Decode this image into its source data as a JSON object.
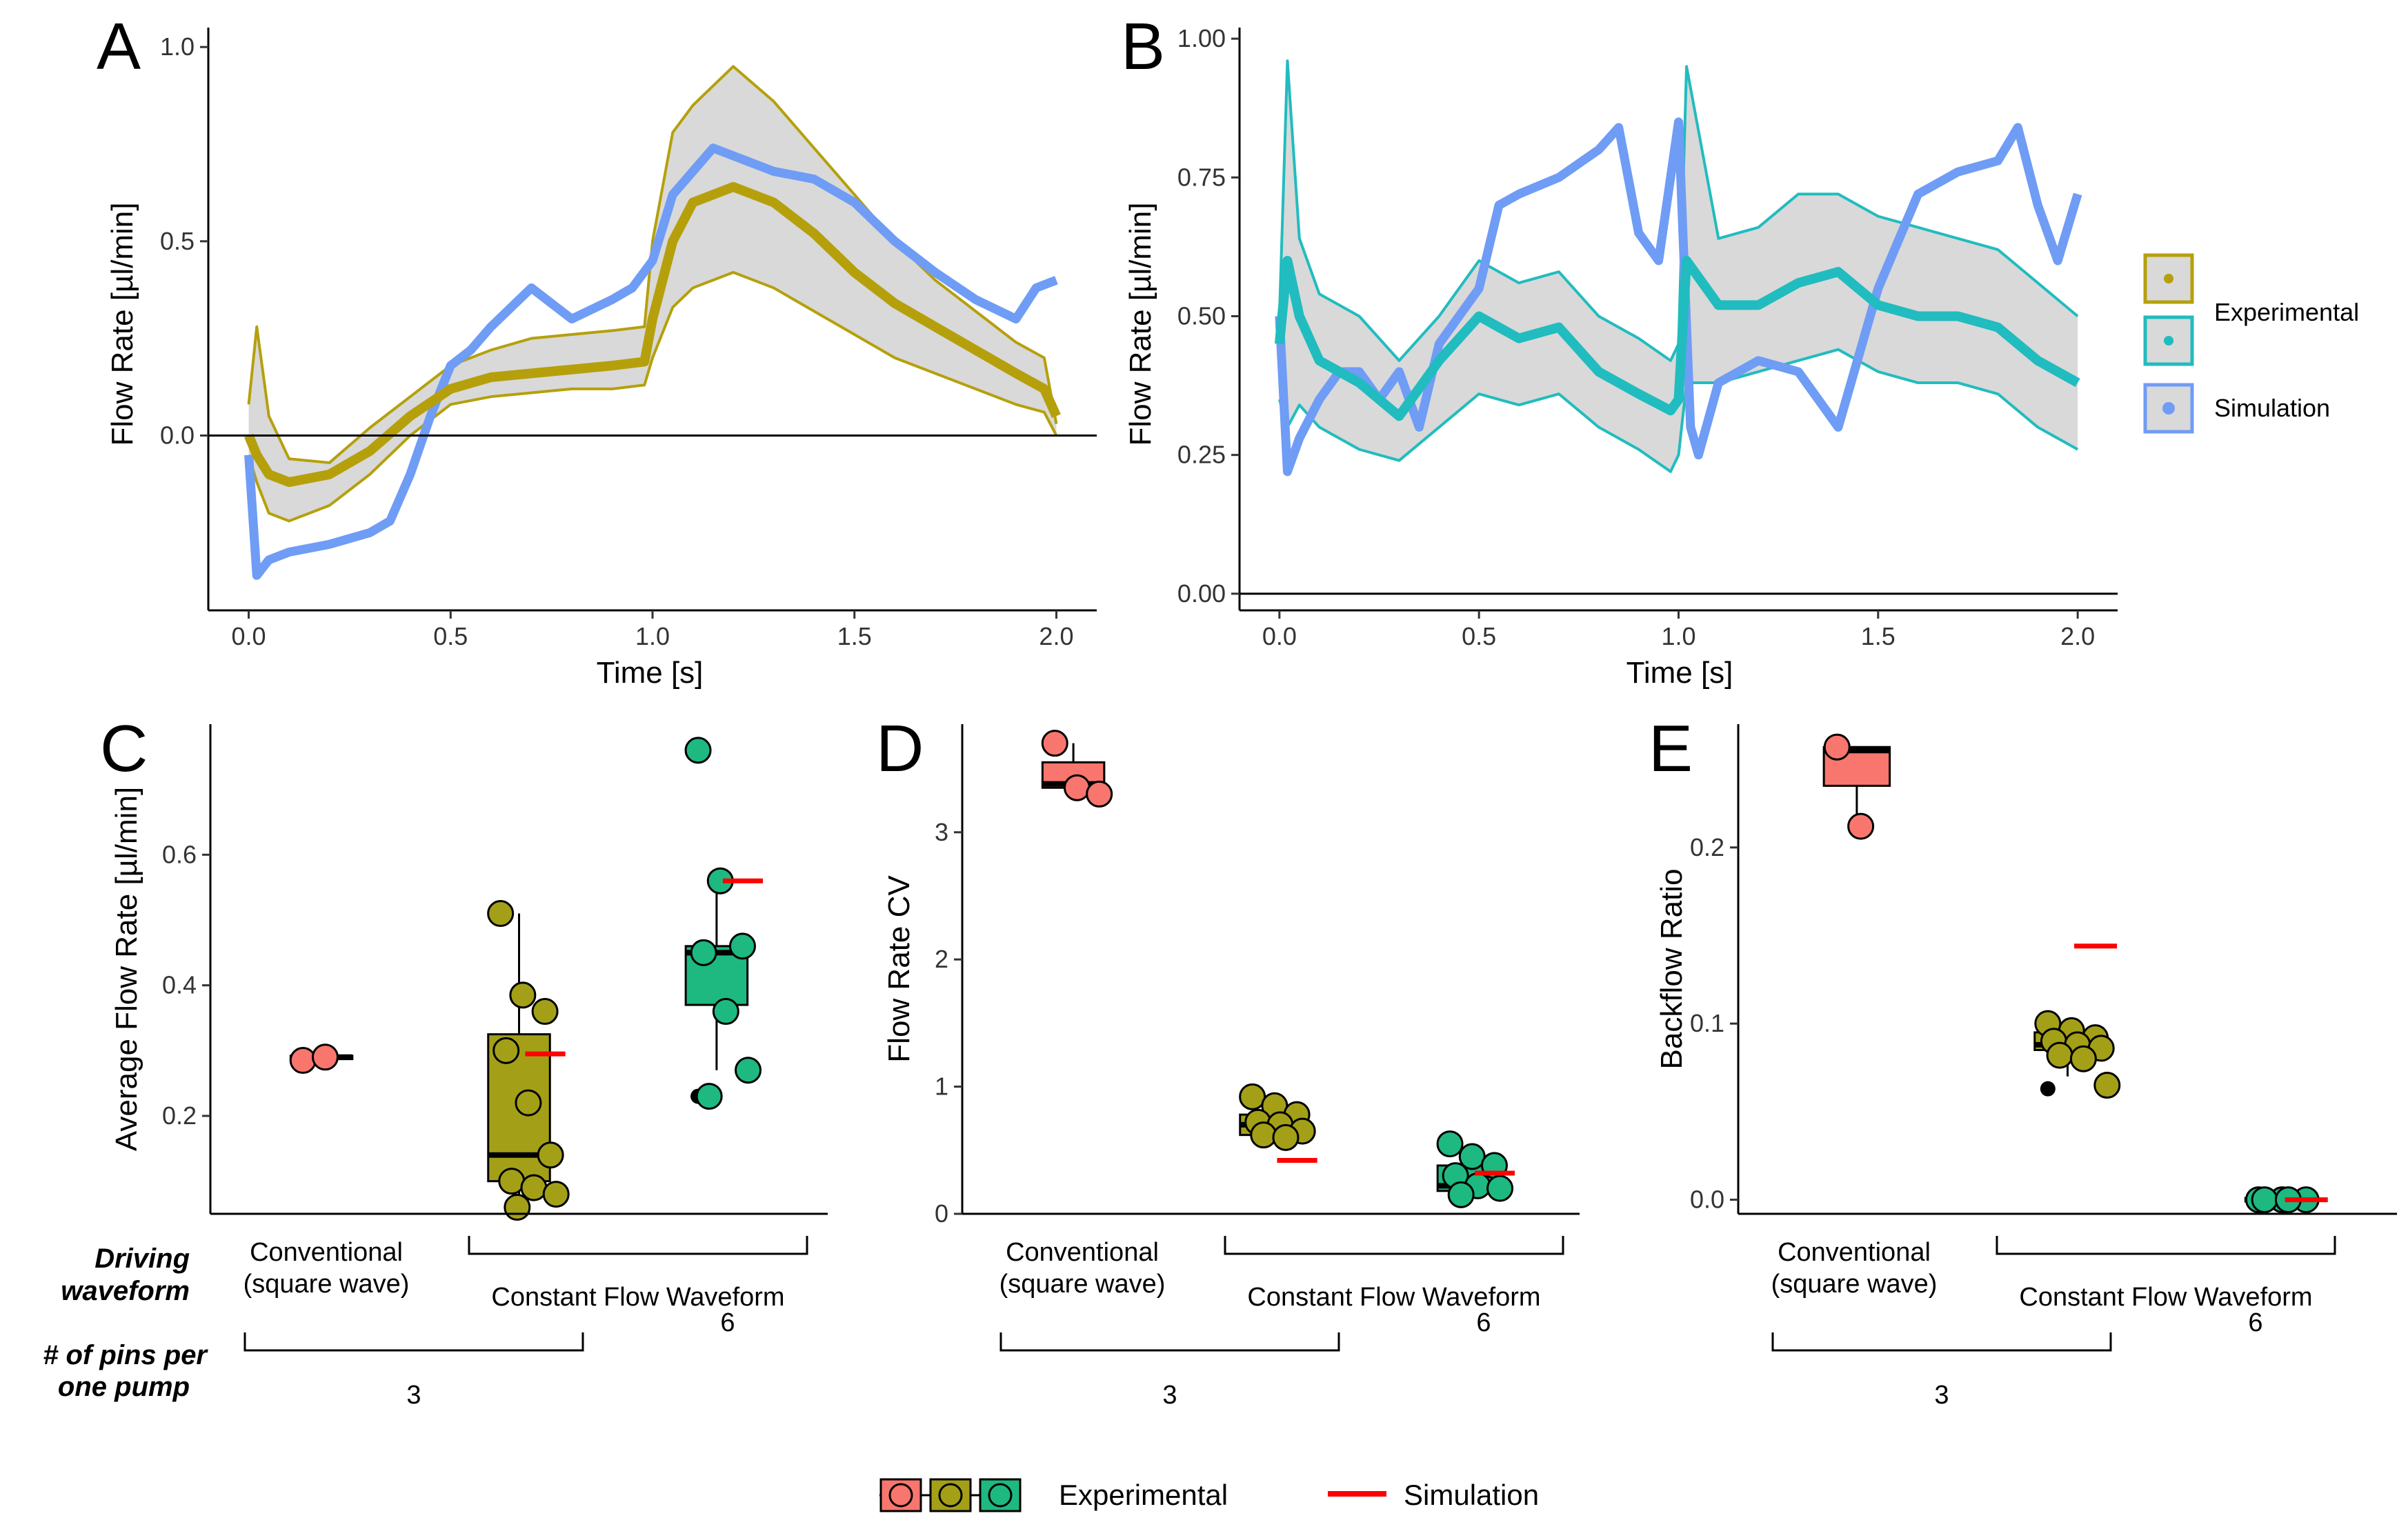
{
  "colors": {
    "panel_a": "#b5a00c",
    "panel_b": "#21bcbf",
    "sim_blue": "#6f9cf5",
    "band": "#d9d9d9",
    "conventional": "#f8766d",
    "constant3": "#a3a018",
    "constant6": "#1db981",
    "sim_red": "#ff0000"
  },
  "panels": {
    "a": {
      "letter": "A",
      "ylabel": "Flow Rate [µl/min]",
      "xlabel": "Time [s]"
    },
    "b": {
      "letter": "B",
      "ylabel": "Flow Rate [µl/min]",
      "xlabel": "Time [s]"
    },
    "c": {
      "letter": "C",
      "ylabel": "Average Flow Rate [µl/min]"
    },
    "d": {
      "letter": "D",
      "ylabel": "Flow Rate CV"
    },
    "e": {
      "letter": "E",
      "ylabel": "Backflow Ratio"
    }
  },
  "legend_top": {
    "experimental": "Experimental",
    "simulation": "Simulation"
  },
  "legend_bottom": {
    "experimental": "Experimental",
    "simulation": "Simulation"
  },
  "row_labels": {
    "driving_1": "Driving",
    "driving_2": "waveform",
    "pins_1": "# of pins per",
    "pins_2": "one pump"
  },
  "groups": {
    "conventional_1": "Conventional",
    "conventional_2": "(square wave)",
    "constant": "Constant Flow Waveform",
    "pins3": "3",
    "pins6": "6"
  },
  "chart_data": [
    {
      "panel": "A",
      "type": "line",
      "xlabel": "Time [s]",
      "ylabel": "Flow Rate [µl/min]",
      "xlim": [
        -0.1,
        2.1
      ],
      "ylim": [
        -0.45,
        1.05
      ],
      "xticks": [
        0.0,
        0.5,
        1.0,
        1.5,
        2.0
      ],
      "yticks": [
        0.0,
        0.5,
        1.0
      ],
      "xtick_labels": [
        "0.0",
        "0.5",
        "1.0",
        "1.5",
        "2.0"
      ],
      "ytick_labels": [
        "0.0",
        "0.5",
        "1.0"
      ],
      "series": [
        {
          "name": "Experimental (mean)",
          "x": [
            0,
            0.02,
            0.05,
            0.1,
            0.2,
            0.3,
            0.4,
            0.5,
            0.6,
            0.7,
            0.8,
            0.9,
            0.98,
            1.0,
            1.05,
            1.1,
            1.2,
            1.3,
            1.4,
            1.5,
            1.6,
            1.7,
            1.8,
            1.9,
            1.97,
            2.0
          ],
          "y": [
            0.0,
            -0.05,
            -0.1,
            -0.12,
            -0.1,
            -0.04,
            0.05,
            0.12,
            0.15,
            0.16,
            0.17,
            0.18,
            0.19,
            0.3,
            0.5,
            0.6,
            0.64,
            0.6,
            0.52,
            0.42,
            0.34,
            0.28,
            0.22,
            0.16,
            0.12,
            0.05
          ]
        },
        {
          "name": "Experimental (upper)",
          "x": [
            0,
            0.02,
            0.05,
            0.1,
            0.2,
            0.3,
            0.4,
            0.5,
            0.6,
            0.7,
            0.8,
            0.9,
            0.98,
            1.0,
            1.05,
            1.1,
            1.2,
            1.3,
            1.4,
            1.5,
            1.6,
            1.7,
            1.8,
            1.9,
            1.97,
            2.0
          ],
          "y": [
            0.08,
            0.28,
            0.05,
            -0.06,
            -0.07,
            0.02,
            0.1,
            0.18,
            0.22,
            0.25,
            0.26,
            0.27,
            0.28,
            0.5,
            0.78,
            0.85,
            0.95,
            0.86,
            0.74,
            0.62,
            0.5,
            0.4,
            0.32,
            0.24,
            0.2,
            0.03
          ]
        },
        {
          "name": "Experimental (lower)",
          "x": [
            0,
            0.02,
            0.05,
            0.1,
            0.2,
            0.3,
            0.4,
            0.5,
            0.6,
            0.7,
            0.8,
            0.9,
            0.98,
            1.0,
            1.05,
            1.1,
            1.2,
            1.3,
            1.4,
            1.5,
            1.6,
            1.7,
            1.8,
            1.9,
            1.97,
            2.0
          ],
          "y": [
            -0.05,
            -0.12,
            -0.2,
            -0.22,
            -0.18,
            -0.1,
            0.0,
            0.08,
            0.1,
            0.11,
            0.12,
            0.12,
            0.13,
            0.2,
            0.33,
            0.38,
            0.42,
            0.38,
            0.32,
            0.26,
            0.2,
            0.16,
            0.12,
            0.08,
            0.06,
            0.0
          ]
        },
        {
          "name": "Simulation",
          "x": [
            0,
            0.02,
            0.05,
            0.1,
            0.2,
            0.3,
            0.35,
            0.4,
            0.45,
            0.5,
            0.55,
            0.6,
            0.7,
            0.8,
            0.9,
            0.95,
            1.0,
            1.05,
            1.1,
            1.15,
            1.2,
            1.3,
            1.4,
            1.5,
            1.6,
            1.7,
            1.8,
            1.9,
            1.95,
            2.0
          ],
          "y": [
            -0.05,
            -0.36,
            -0.32,
            -0.3,
            -0.28,
            -0.25,
            -0.22,
            -0.1,
            0.05,
            0.18,
            0.22,
            0.28,
            0.38,
            0.3,
            0.35,
            0.38,
            0.45,
            0.62,
            0.68,
            0.74,
            0.72,
            0.68,
            0.66,
            0.6,
            0.5,
            0.42,
            0.35,
            0.3,
            0.38,
            0.4
          ]
        }
      ]
    },
    {
      "panel": "B",
      "type": "line",
      "xlabel": "Time [s]",
      "ylabel": "Flow Rate [µl/min]",
      "xlim": [
        -0.1,
        2.1
      ],
      "ylim": [
        -0.03,
        1.02
      ],
      "xticks": [
        0.0,
        0.5,
        1.0,
        1.5,
        2.0
      ],
      "yticks": [
        0.0,
        0.25,
        0.5,
        0.75,
        1.0
      ],
      "xtick_labels": [
        "0.0",
        "0.5",
        "1.0",
        "1.5",
        "2.0"
      ],
      "ytick_labels": [
        "0.00",
        "0.25",
        "0.50",
        "0.75",
        "1.00"
      ],
      "series": [
        {
          "name": "Experimental (mean)",
          "x": [
            0,
            0.02,
            0.05,
            0.1,
            0.2,
            0.3,
            0.4,
            0.5,
            0.6,
            0.7,
            0.8,
            0.9,
            0.98,
            1.0,
            1.02,
            1.1,
            1.2,
            1.3,
            1.4,
            1.5,
            1.6,
            1.7,
            1.8,
            1.9,
            2.0
          ],
          "y": [
            0.45,
            0.6,
            0.5,
            0.42,
            0.38,
            0.32,
            0.42,
            0.5,
            0.46,
            0.48,
            0.4,
            0.36,
            0.33,
            0.35,
            0.6,
            0.52,
            0.52,
            0.56,
            0.58,
            0.52,
            0.5,
            0.5,
            0.48,
            0.42,
            0.38
          ]
        },
        {
          "name": "Experimental (upper)",
          "x": [
            0,
            0.02,
            0.05,
            0.1,
            0.2,
            0.3,
            0.4,
            0.5,
            0.6,
            0.7,
            0.8,
            0.9,
            0.98,
            1.0,
            1.02,
            1.1,
            1.2,
            1.3,
            1.4,
            1.5,
            1.6,
            1.7,
            1.8,
            1.9,
            2.0
          ],
          "y": [
            0.5,
            0.96,
            0.64,
            0.54,
            0.5,
            0.42,
            0.5,
            0.6,
            0.56,
            0.58,
            0.5,
            0.46,
            0.42,
            0.45,
            0.95,
            0.64,
            0.66,
            0.72,
            0.72,
            0.68,
            0.66,
            0.64,
            0.62,
            0.56,
            0.5
          ]
        },
        {
          "name": "Experimental (lower)",
          "x": [
            0,
            0.02,
            0.05,
            0.1,
            0.2,
            0.3,
            0.4,
            0.5,
            0.6,
            0.7,
            0.8,
            0.9,
            0.98,
            1.0,
            1.02,
            1.1,
            1.2,
            1.3,
            1.4,
            1.5,
            1.6,
            1.7,
            1.8,
            1.9,
            2.0
          ],
          "y": [
            0.35,
            0.3,
            0.34,
            0.3,
            0.26,
            0.24,
            0.3,
            0.36,
            0.34,
            0.36,
            0.3,
            0.26,
            0.22,
            0.25,
            0.38,
            0.38,
            0.4,
            0.42,
            0.44,
            0.4,
            0.38,
            0.38,
            0.36,
            0.3,
            0.26
          ]
        },
        {
          "name": "Simulation",
          "x": [
            0,
            0.02,
            0.05,
            0.1,
            0.15,
            0.2,
            0.25,
            0.3,
            0.35,
            0.4,
            0.5,
            0.55,
            0.6,
            0.7,
            0.8,
            0.85,
            0.9,
            0.95,
            1.0,
            1.03,
            1.05,
            1.1,
            1.2,
            1.3,
            1.4,
            1.5,
            1.6,
            1.7,
            1.8,
            1.85,
            1.9,
            1.95,
            2.0
          ],
          "y": [
            0.5,
            0.22,
            0.28,
            0.35,
            0.4,
            0.4,
            0.35,
            0.4,
            0.3,
            0.45,
            0.55,
            0.7,
            0.72,
            0.75,
            0.8,
            0.84,
            0.65,
            0.6,
            0.85,
            0.3,
            0.25,
            0.38,
            0.42,
            0.4,
            0.3,
            0.55,
            0.72,
            0.76,
            0.78,
            0.84,
            0.7,
            0.6,
            0.72
          ]
        }
      ]
    },
    {
      "panel": "C",
      "type": "box",
      "ylabel": "Average Flow Rate [µl/min]",
      "ylim": [
        0.05,
        0.8
      ],
      "yticks": [
        0.2,
        0.4,
        0.6
      ],
      "ytick_labels": [
        "0.2",
        "0.4",
        "0.6"
      ],
      "categories": [
        "Conventional (square wave) / 3 pins",
        "Constant Flow Waveform / 3 pins",
        "Constant Flow Waveform / 6 pins"
      ],
      "boxes": [
        {
          "q1": 0.287,
          "median": 0.29,
          "q3": 0.292,
          "whisker_low": 0.285,
          "whisker_high": 0.295,
          "outliers": []
        },
        {
          "q1": 0.1,
          "median": 0.14,
          "q3": 0.325,
          "whisker_low": 0.07,
          "whisker_high": 0.51,
          "outliers": []
        },
        {
          "q1": 0.37,
          "median": 0.45,
          "q3": 0.46,
          "whisker_low": 0.27,
          "whisker_high": 0.56,
          "outliers": [
            0.76,
            0.23
          ]
        }
      ],
      "points": [
        [
          0.285,
          0.29
        ],
        [
          0.51,
          0.385,
          0.36,
          0.3,
          0.22,
          0.14,
          0.1,
          0.09,
          0.08,
          0.06
        ],
        [
          0.76,
          0.56,
          0.46,
          0.45,
          0.36,
          0.27,
          0.23
        ]
      ],
      "simulation": [
        null,
        0.295,
        0.56
      ]
    },
    {
      "panel": "D",
      "type": "box",
      "ylabel": "Flow Rate CV",
      "ylim": [
        0,
        3.85
      ],
      "yticks": [
        0,
        1,
        2,
        3
      ],
      "ytick_labels": [
        "0",
        "1",
        "2",
        "3"
      ],
      "categories": [
        "Conventional (square wave) / 3 pins",
        "Constant Flow Waveform / 3 pins",
        "Constant Flow Waveform / 6 pins"
      ],
      "boxes": [
        {
          "q1": 3.35,
          "median": 3.38,
          "q3": 3.55,
          "whisker_low": 3.3,
          "whisker_high": 3.7,
          "outliers": []
        },
        {
          "q1": 0.62,
          "median": 0.7,
          "q3": 0.78,
          "whisker_low": 0.55,
          "whisker_high": 0.92,
          "outliers": []
        },
        {
          "q1": 0.18,
          "median": 0.22,
          "q3": 0.38,
          "whisker_low": 0.15,
          "whisker_high": 0.55,
          "outliers": []
        }
      ],
      "points": [
        [
          3.7,
          3.35,
          3.3
        ],
        [
          0.92,
          0.85,
          0.78,
          0.72,
          0.7,
          0.65,
          0.62,
          0.6
        ],
        [
          0.55,
          0.45,
          0.38,
          0.3,
          0.22,
          0.2,
          0.15
        ]
      ],
      "simulation": [
        null,
        0.42,
        0.32
      ]
    },
    {
      "panel": "E",
      "type": "box",
      "ylabel": "Backflow Ratio",
      "ylim": [
        -0.008,
        0.27
      ],
      "yticks": [
        0.0,
        0.1,
        0.2
      ],
      "ytick_labels": [
        "0.0",
        "0.1",
        "0.2"
      ],
      "categories": [
        "Conventional (square wave) / 3 pins",
        "Constant Flow Waveform / 3 pins",
        "Constant Flow Waveform / 6 pins"
      ],
      "boxes": [
        {
          "q1": 0.235,
          "median": 0.255,
          "q3": 0.257,
          "whisker_low": 0.212,
          "whisker_high": 0.257,
          "outliers": []
        },
        {
          "q1": 0.085,
          "median": 0.088,
          "q3": 0.095,
          "whisker_low": 0.07,
          "whisker_high": 0.1,
          "outliers": [
            0.063
          ]
        },
        {
          "q1": -0.001,
          "median": 0.0,
          "q3": 0.001,
          "whisker_low": -0.001,
          "whisker_high": 0.001,
          "outliers": []
        }
      ],
      "points": [
        [
          0.257,
          0.212
        ],
        [
          0.1,
          0.096,
          0.092,
          0.09,
          0.088,
          0.086,
          0.082,
          0.08,
          0.065
        ],
        [
          0.0,
          0.0,
          0.0,
          0.0,
          0.0
        ]
      ],
      "simulation": [
        null,
        0.144,
        0.0
      ]
    }
  ]
}
